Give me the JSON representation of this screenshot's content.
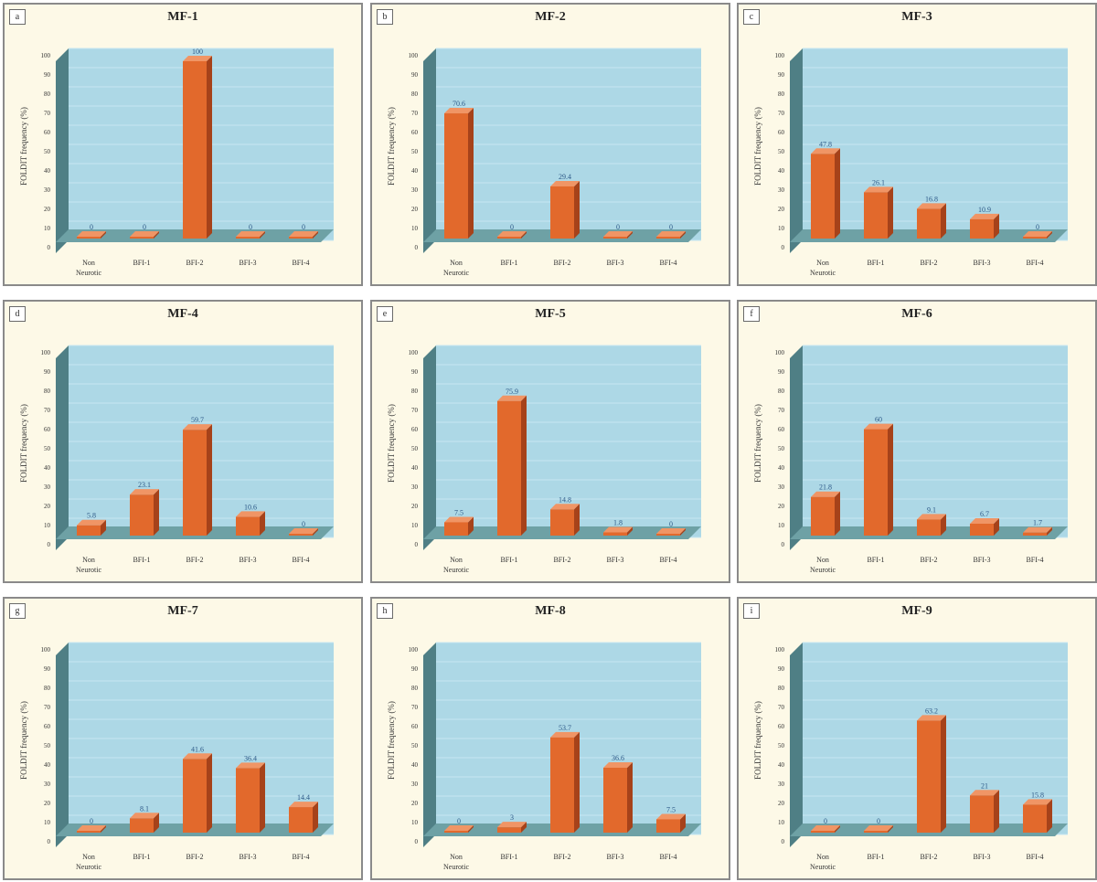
{
  "panels": [
    {
      "tag": "a",
      "title": "MF-1"
    },
    {
      "tag": "b",
      "title": "MF-2"
    },
    {
      "tag": "c",
      "title": "MF-3"
    },
    {
      "tag": "d",
      "title": "MF-4"
    },
    {
      "tag": "e",
      "title": "MF-5"
    },
    {
      "tag": "f",
      "title": "MF-6"
    },
    {
      "tag": "g",
      "title": "MF-7"
    },
    {
      "tag": "h",
      "title": "MF-8"
    },
    {
      "tag": "i",
      "title": "MF-9"
    }
  ],
  "colors": {
    "bar_front": "#e2692c",
    "bar_side": "#a6421a",
    "bar_top": "#f09565",
    "wall": "#add8e6",
    "floor": "#6ea1a5",
    "panel_bg": "#fdf9e7"
  },
  "chart_data": [
    {
      "type": "bar",
      "title": "MF-1",
      "ylabel": "FOLDIT frequency (%)",
      "ylim": [
        0,
        100
      ],
      "yticks": [
        0,
        10,
        20,
        30,
        40,
        50,
        60,
        70,
        80,
        90,
        100
      ],
      "categories": [
        [
          "Non",
          "Neurotic"
        ],
        [
          "BFI-1"
        ],
        [
          "BFI-2"
        ],
        [
          "BFI-3"
        ],
        [
          "BFI-4"
        ]
      ],
      "values": [
        0,
        0,
        100,
        0,
        0
      ],
      "labels": [
        "0",
        "0",
        "100",
        "0",
        "0"
      ]
    },
    {
      "type": "bar",
      "title": "MF-2",
      "ylabel": "FOLDIT frequency (%)",
      "ylim": [
        0,
        100
      ],
      "yticks": [
        0,
        10,
        20,
        30,
        40,
        50,
        60,
        70,
        80,
        90,
        100
      ],
      "categories": [
        [
          "Non",
          "Neurotic"
        ],
        [
          "BFI-1"
        ],
        [
          "BFI-2"
        ],
        [
          "BFI-3"
        ],
        [
          "BFI-4"
        ]
      ],
      "values": [
        70.6,
        0,
        29.4,
        0,
        0
      ],
      "labels": [
        "70.6",
        "0",
        "29.4",
        "0",
        "0"
      ]
    },
    {
      "type": "bar",
      "title": "MF-3",
      "ylabel": "FOLDIT frequency (%)",
      "ylim": [
        0,
        100
      ],
      "yticks": [
        0,
        10,
        20,
        30,
        40,
        50,
        60,
        70,
        80,
        90,
        100
      ],
      "categories": [
        [
          "Non",
          "Neurotic"
        ],
        [
          "BFI-1"
        ],
        [
          "BFI-2"
        ],
        [
          "BFI-3"
        ],
        [
          "BFI-4"
        ]
      ],
      "values": [
        47.8,
        26.1,
        16.8,
        10.9,
        0
      ],
      "labels": [
        "47.8",
        "26.1",
        "16.8",
        "10.9",
        "0"
      ]
    },
    {
      "type": "bar",
      "title": "MF-4",
      "ylabel": "FOLDIT frequency (%)",
      "ylim": [
        0,
        100
      ],
      "yticks": [
        0,
        10,
        20,
        30,
        40,
        50,
        60,
        70,
        80,
        90,
        100
      ],
      "categories": [
        [
          "Non",
          "Neurotic"
        ],
        [
          "BFI-1"
        ],
        [
          "BFI-2"
        ],
        [
          "BFI-3"
        ],
        [
          "BFI-4"
        ]
      ],
      "values": [
        5.8,
        23.1,
        59.7,
        10.6,
        0
      ],
      "labels": [
        "5.8",
        "23.1",
        "59.7",
        "10.6",
        "0"
      ]
    },
    {
      "type": "bar",
      "title": "MF-5",
      "ylabel": "FOLDIT frequency (%)",
      "ylim": [
        0,
        100
      ],
      "yticks": [
        0,
        10,
        20,
        30,
        40,
        50,
        60,
        70,
        80,
        90,
        100
      ],
      "categories": [
        [
          "Non",
          "Neurotic"
        ],
        [
          "BFI-1"
        ],
        [
          "BFI-2"
        ],
        [
          "BFI-3"
        ],
        [
          "BFI-4"
        ]
      ],
      "values": [
        7.5,
        75.9,
        14.8,
        1.8,
        0
      ],
      "labels": [
        "7.5",
        "75.9",
        "14.8",
        "1.8",
        "0"
      ]
    },
    {
      "type": "bar",
      "title": "MF-6",
      "ylabel": "FOLDIT frequency (%)",
      "ylim": [
        0,
        100
      ],
      "yticks": [
        0,
        10,
        20,
        30,
        40,
        50,
        60,
        70,
        80,
        90,
        100
      ],
      "categories": [
        [
          "Non",
          "Neurotic"
        ],
        [
          "BFI-1"
        ],
        [
          "BFI-2"
        ],
        [
          "BFI-3"
        ],
        [
          "BFI-4"
        ]
      ],
      "values": [
        21.8,
        60,
        9.1,
        6.7,
        1.7
      ],
      "labels": [
        "21.8",
        "60",
        "9.1",
        "6.7",
        "1.7"
      ]
    },
    {
      "type": "bar",
      "title": "MF-7",
      "ylabel": "FOLDIT frequency (%)",
      "ylim": [
        0,
        100
      ],
      "yticks": [
        0,
        10,
        20,
        30,
        40,
        50,
        60,
        70,
        80,
        90,
        100
      ],
      "categories": [
        [
          "Non",
          "Neurotic"
        ],
        [
          "BFI-1"
        ],
        [
          "BFI-2"
        ],
        [
          "BFI-3"
        ],
        [
          "BFI-4"
        ]
      ],
      "values": [
        0,
        8.1,
        41.6,
        36.4,
        14.4
      ],
      "labels": [
        "0",
        "8.1",
        "41.6",
        "36.4",
        "14.4"
      ]
    },
    {
      "type": "bar",
      "title": "MF-8",
      "ylabel": "FOLDIT frequency (%)",
      "ylim": [
        0,
        100
      ],
      "yticks": [
        0,
        10,
        20,
        30,
        40,
        50,
        60,
        70,
        80,
        90,
        100
      ],
      "categories": [
        [
          "Non",
          "Neurotic"
        ],
        [
          "BFI-1"
        ],
        [
          "BFI-2"
        ],
        [
          "BFI-3"
        ],
        [
          "BFI-4"
        ]
      ],
      "values": [
        0,
        3,
        53.7,
        36.6,
        7.5
      ],
      "labels": [
        "0",
        "3",
        "53.7",
        "36.6",
        "7.5"
      ]
    },
    {
      "type": "bar",
      "title": "MF-9",
      "ylabel": "FOLDIT frequency (%)",
      "ylim": [
        0,
        100
      ],
      "yticks": [
        0,
        10,
        20,
        30,
        40,
        50,
        60,
        70,
        80,
        90,
        100
      ],
      "categories": [
        [
          "Non",
          "Neurotic"
        ],
        [
          "BFI-1"
        ],
        [
          "BFI-2"
        ],
        [
          "BFI-3"
        ],
        [
          "BFI-4"
        ]
      ],
      "values": [
        0,
        0,
        63.2,
        21,
        15.8
      ],
      "labels": [
        "0",
        "0",
        "63.2",
        "21",
        "15.8"
      ]
    }
  ]
}
